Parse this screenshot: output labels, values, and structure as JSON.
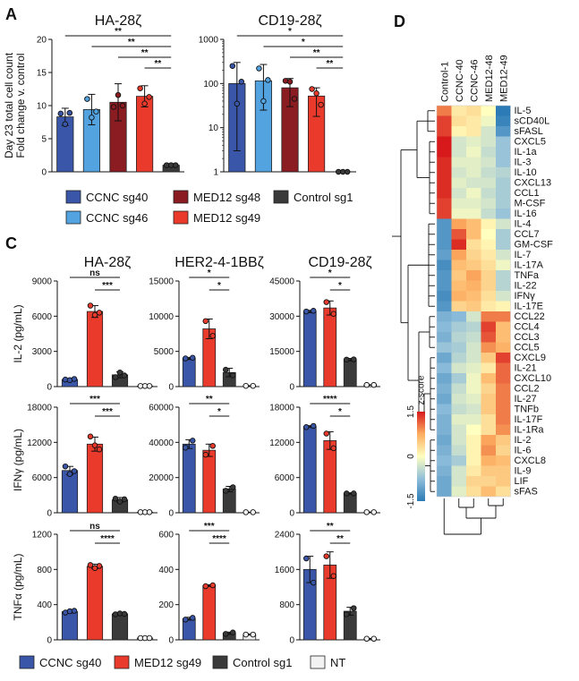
{
  "panel_labels": {
    "a": "A",
    "c": "C",
    "d": "D"
  },
  "colors": {
    "CCNC sg40": "#3a56a8",
    "CCNC sg46": "#52a3e0",
    "MED12 sg48": "#8a1c22",
    "MED12 sg49": "#ea3a2c",
    "Control sg1": "#3a3a3a",
    "NT": "#f2f2f2"
  },
  "legend_a": {
    "items": [
      "CCNC sg40",
      "MED12 sg48",
      "Control sg1",
      "CCNC sg46",
      "MED12 sg49"
    ]
  },
  "legend_c": {
    "items": [
      "CCNC sg40",
      "MED12 sg49",
      "Control sg1",
      "NT"
    ]
  },
  "chart_data": [
    {
      "id": "A-HA",
      "type": "bar",
      "panel": "A",
      "title": "HA-28ζ",
      "ylabel": "Day 23 total cell count\nFold change v. control",
      "scale": "linear",
      "ylim": [
        0,
        20
      ],
      "yticks": [
        0,
        5,
        10,
        15,
        20
      ],
      "categories": [
        "CCNC sg40",
        "CCNC sg46",
        "MED12 sg48",
        "MED12 sg49",
        "Control sg1"
      ],
      "values": [
        8.3,
        9.4,
        10.5,
        11.4,
        1.0
      ],
      "errors": [
        1.3,
        2.3,
        2.8,
        1.6,
        0.1
      ],
      "points": [
        [
          8.8,
          7.2,
          8.9
        ],
        [
          11,
          8.2,
          9.1
        ],
        [
          9.8,
          11.6,
          10
        ],
        [
          12.6,
          10.3,
          11.3
        ],
        [
          1,
          1,
          1
        ]
      ],
      "significance": [
        {
          "from": 0,
          "to": 4,
          "label": "**"
        },
        {
          "from": 1,
          "to": 4,
          "label": "**"
        },
        {
          "from": 2,
          "to": 4,
          "label": "**"
        },
        {
          "from": 3,
          "to": 4,
          "label": "**"
        }
      ]
    },
    {
      "id": "A-CD19",
      "type": "bar",
      "panel": "A",
      "title": "CD19-28ζ",
      "ylabel": "",
      "scale": "log",
      "ylim": [
        1,
        1000
      ],
      "yticks": [
        1,
        10,
        100,
        1000
      ],
      "categories": [
        "CCNC sg40",
        "CCNC sg46",
        "MED12 sg48",
        "MED12 sg49",
        "Control sg1"
      ],
      "values": [
        100,
        115,
        80,
        52,
        1.0
      ],
      "errors_low": [
        97,
        90,
        50,
        34,
        0
      ],
      "errors_high": [
        300,
        270,
        130,
        80,
        1
      ],
      "points": [
        [
          250,
          35,
          110
        ],
        [
          220,
          40,
          120
        ],
        [
          115,
          110,
          45
        ],
        [
          75,
          60,
          33
        ],
        [
          1,
          1,
          1
        ]
      ],
      "significance": [
        {
          "from": 0,
          "to": 4,
          "label": "*"
        },
        {
          "from": 1,
          "to": 4,
          "label": "*"
        },
        {
          "from": 2,
          "to": 4,
          "label": "**"
        },
        {
          "from": 3,
          "to": 4,
          "label": "**"
        }
      ]
    },
    {
      "id": "C-IL2-HA",
      "type": "bar",
      "panel": "C",
      "title": "HA-28ζ",
      "ylabel": "IL-2 (pg/mL)",
      "scale": "linear",
      "ylim": [
        0,
        9000
      ],
      "yticks": [
        0,
        3000,
        6000,
        9000
      ],
      "categories": [
        "CCNC sg40",
        "MED12 sg49",
        "Control sg1",
        "NT"
      ],
      "values": [
        600,
        6400,
        1000,
        50
      ],
      "errors": [
        80,
        500,
        250,
        20
      ],
      "points": [
        [
          600,
          550,
          650
        ],
        [
          6900,
          6100,
          6300
        ],
        [
          800,
          1200,
          950
        ],
        [
          50,
          50,
          50
        ]
      ],
      "significance": [
        {
          "from": 0,
          "to": 2,
          "label": "ns"
        },
        {
          "from": 1,
          "to": 2,
          "label": "***"
        }
      ]
    },
    {
      "id": "C-IL2-HER2",
      "type": "bar",
      "panel": "C",
      "title": "HER2-4-1BBζ",
      "ylabel": "",
      "scale": "linear",
      "ylim": [
        0,
        15000
      ],
      "yticks": [
        0,
        5000,
        10000,
        15000
      ],
      "categories": [
        "CCNC sg40",
        "MED12 sg49",
        "Control sg1",
        "NT"
      ],
      "values": [
        4000,
        8200,
        2000,
        100
      ],
      "errors": [
        150,
        1400,
        600,
        30
      ],
      "points": [
        [
          4000,
          4100
        ],
        [
          9300,
          7200
        ],
        [
          2400,
          1600
        ],
        [
          100,
          100
        ]
      ],
      "significance": [
        {
          "from": 0,
          "to": 2,
          "label": "*"
        },
        {
          "from": 1,
          "to": 2,
          "label": "*"
        }
      ]
    },
    {
      "id": "C-IL2-CD19",
      "type": "bar",
      "panel": "C",
      "title": "CD19-28ζ",
      "ylabel": "",
      "scale": "linear",
      "ylim": [
        0,
        45000
      ],
      "yticks": [
        0,
        15000,
        30000,
        45000
      ],
      "categories": [
        "CCNC sg40",
        "MED12 sg49",
        "Control sg1",
        "NT"
      ],
      "values": [
        32000,
        33500,
        11500,
        700
      ],
      "errors": [
        500,
        3000,
        500,
        100
      ],
      "points": [
        [
          32000,
          32300
        ],
        [
          36000,
          31000
        ],
        [
          11500,
          11600
        ],
        [
          700,
          700
        ]
      ],
      "significance": [
        {
          "from": 0,
          "to": 2,
          "label": "*"
        },
        {
          "from": 1,
          "to": 2,
          "label": "*"
        }
      ]
    },
    {
      "id": "C-IFNg-HA",
      "type": "bar",
      "panel": "C",
      "title": "",
      "ylabel": "IFNγ (pg/mL)",
      "scale": "linear",
      "ylim": [
        0,
        18000
      ],
      "yticks": [
        0,
        6000,
        12000,
        18000
      ],
      "categories": [
        "CCNC sg40",
        "MED12 sg49",
        "Control sg1",
        "NT"
      ],
      "values": [
        7200,
        11700,
        2200,
        100
      ],
      "errors": [
        700,
        1200,
        400,
        30
      ],
      "points": [
        [
          7900,
          6600,
          7100
        ],
        [
          13000,
          11500,
          10800
        ],
        [
          2400,
          1900,
          2300
        ],
        [
          100,
          100,
          100
        ]
      ],
      "significance": [
        {
          "from": 0,
          "to": 2,
          "label": "***"
        },
        {
          "from": 1,
          "to": 2,
          "label": "***"
        }
      ]
    },
    {
      "id": "C-IFNg-HER2",
      "type": "bar",
      "panel": "C",
      "title": "",
      "ylabel": "",
      "scale": "linear",
      "ylim": [
        0,
        60000
      ],
      "yticks": [
        0,
        20000,
        40000,
        60000
      ],
      "categories": [
        "CCNC sg40",
        "MED12 sg49",
        "Control sg1",
        "NT"
      ],
      "values": [
        39000,
        35500,
        13500,
        300
      ],
      "errors": [
        2500,
        3500,
        1500,
        50
      ],
      "points": [
        [
          37000,
          41000
        ],
        [
          33000,
          38000
        ],
        [
          12500,
          14500
        ],
        [
          300,
          300
        ]
      ],
      "significance": [
        {
          "from": 0,
          "to": 2,
          "label": "**"
        },
        {
          "from": 1,
          "to": 2,
          "label": "*"
        }
      ]
    },
    {
      "id": "C-IFNg-CD19",
      "type": "bar",
      "panel": "C",
      "title": "",
      "ylabel": "",
      "scale": "linear",
      "ylim": [
        0,
        18000
      ],
      "yticks": [
        0,
        6000,
        12000,
        18000
      ],
      "categories": [
        "CCNC sg40",
        "MED12 sg49",
        "Control sg1",
        "NT"
      ],
      "values": [
        14700,
        12300,
        3300,
        100
      ],
      "errors": [
        150,
        1500,
        100,
        30
      ],
      "points": [
        [
          14600,
          14800
        ],
        [
          13500,
          11000
        ],
        [
          3300,
          3300
        ],
        [
          100,
          100
        ]
      ],
      "significance": [
        {
          "from": 0,
          "to": 2,
          "label": "****"
        },
        {
          "from": 1,
          "to": 2,
          "label": "*"
        }
      ]
    },
    {
      "id": "C-TNFa-HA",
      "type": "bar",
      "panel": "C",
      "title": "",
      "ylabel": "TNFα (pg/mL)",
      "scale": "linear",
      "ylim": [
        0,
        1200
      ],
      "yticks": [
        0,
        400,
        800,
        1200
      ],
      "categories": [
        "CCNC sg40",
        "MED12 sg49",
        "Control sg1",
        "NT"
      ],
      "values": [
        320,
        835,
        295,
        20
      ],
      "errors": [
        15,
        25,
        10,
        5
      ],
      "points": [
        [
          310,
          325,
          330
        ],
        [
          850,
          815,
          840
        ],
        [
          290,
          300,
          295
        ],
        [
          20,
          20,
          20
        ]
      ],
      "significance": [
        {
          "from": 0,
          "to": 2,
          "label": "ns"
        },
        {
          "from": 1,
          "to": 2,
          "label": "****"
        }
      ]
    },
    {
      "id": "C-TNFa-HER2",
      "type": "bar",
      "panel": "C",
      "title": "",
      "ylabel": "",
      "scale": "linear",
      "ylim": [
        0,
        600
      ],
      "yticks": [
        0,
        200,
        400,
        600
      ],
      "categories": [
        "CCNC sg40",
        "MED12 sg49",
        "Control sg1",
        "NT"
      ],
      "values": [
        120,
        308,
        38,
        30
      ],
      "errors": [
        8,
        5,
        6,
        3
      ],
      "points": [
        [
          115,
          125
        ],
        [
          305,
          310
        ],
        [
          34,
          42
        ],
        [
          30,
          30
        ]
      ],
      "significance": [
        {
          "from": 0,
          "to": 2,
          "label": "***"
        },
        {
          "from": 1,
          "to": 2,
          "label": "****"
        }
      ]
    },
    {
      "id": "C-TNFa-CD19",
      "type": "bar",
      "panel": "C",
      "title": "",
      "ylabel": "",
      "scale": "linear",
      "ylim": [
        0,
        2400
      ],
      "yticks": [
        0,
        800,
        1600,
        2400
      ],
      "categories": [
        "CCNC sg40",
        "MED12 sg49",
        "Control sg1",
        "NT"
      ],
      "values": [
        1600,
        1700,
        650,
        25
      ],
      "errors": [
        300,
        300,
        90,
        8
      ],
      "points": [
        [
          1850,
          1300
        ],
        [
          1900,
          1450
        ],
        [
          580,
          720
        ],
        [
          25,
          25
        ]
      ],
      "significance": [
        {
          "from": 0,
          "to": 2,
          "label": "**"
        },
        {
          "from": 1,
          "to": 2,
          "label": "**"
        }
      ]
    },
    {
      "id": "D",
      "type": "heatmap",
      "panel": "D",
      "columns": [
        "Control-1",
        "CCNC-40",
        "CCNC-46",
        "MED12-48",
        "MED12-49"
      ],
      "rows": [
        "IL-5",
        "sCD40L",
        "sFASL",
        "CXCL5",
        "IL-1a",
        "IL-3",
        "IL-10",
        "CXCL13",
        "CCL1",
        "M-CSF",
        "IL-16",
        "IL-4",
        "CCL7",
        "GM-CSF",
        "IL-7",
        "IL-17A",
        "TNFa",
        "IL-22",
        "IFNγ",
        "IL-17E",
        "CCL22",
        "CCL4",
        "CCL3",
        "CCL5",
        "CXCL9",
        "IL-21",
        "CXCL10",
        "CCL2",
        "IL-27",
        "TNFb",
        "IL-17F",
        "IL-1Ra",
        "IL-2",
        "IL-6",
        "CXCL8",
        "IL-9",
        "LIF",
        "sFAS"
      ],
      "values": [
        [
          1.0,
          0.2,
          0.3,
          0.0,
          -1.6
        ],
        [
          1.3,
          0.3,
          0.2,
          -0.1,
          -1.4
        ],
        [
          1.3,
          0.1,
          0.2,
          -0.3,
          -1.2
        ],
        [
          1.5,
          -0.3,
          -0.2,
          -0.3,
          -0.7
        ],
        [
          1.5,
          -0.3,
          -0.1,
          -0.4,
          -0.7
        ],
        [
          1.4,
          -0.2,
          -0.2,
          -0.3,
          -0.7
        ],
        [
          1.4,
          -0.3,
          -0.2,
          -0.4,
          -0.5
        ],
        [
          1.4,
          -0.2,
          -0.3,
          -0.3,
          -0.6
        ],
        [
          1.4,
          -0.3,
          -0.1,
          -0.4,
          -0.6
        ],
        [
          1.3,
          -0.2,
          -0.2,
          -0.3,
          -0.6
        ],
        [
          1.3,
          -0.1,
          -0.1,
          -0.4,
          -0.7
        ],
        [
          -1.2,
          0.8,
          0.6,
          0.1,
          -0.3
        ],
        [
          -1.2,
          1.2,
          0.6,
          0.0,
          -0.6
        ],
        [
          -1.2,
          1.4,
          0.3,
          0.1,
          -0.6
        ],
        [
          -1.1,
          0.8,
          0.4,
          0.2,
          -0.3
        ],
        [
          -1.3,
          0.6,
          0.5,
          0.3,
          -0.1
        ],
        [
          -1.2,
          0.5,
          0.8,
          0.4,
          -0.5
        ],
        [
          -1.2,
          0.6,
          0.7,
          0.4,
          -0.5
        ],
        [
          -1.3,
          0.7,
          0.6,
          0.3,
          -0.3
        ],
        [
          -1.2,
          0.4,
          0.5,
          0.2,
          0.1
        ],
        [
          -0.9,
          -0.8,
          -0.3,
          1.0,
          1.0
        ],
        [
          -0.8,
          -0.6,
          -0.5,
          1.3,
          0.6
        ],
        [
          -0.9,
          -0.5,
          -0.4,
          1.2,
          0.6
        ],
        [
          -0.7,
          -0.6,
          -0.3,
          0.9,
          0.7
        ],
        [
          -1.0,
          -0.5,
          -0.3,
          0.5,
          1.3
        ],
        [
          -0.8,
          -0.3,
          -0.2,
          0.2,
          1.1
        ],
        [
          -1.0,
          -0.6,
          -0.1,
          0.6,
          1.1
        ],
        [
          -0.9,
          -0.4,
          -0.1,
          0.4,
          1.0
        ],
        [
          -1.0,
          -0.3,
          -0.2,
          0.5,
          1.0
        ],
        [
          -0.8,
          -0.4,
          -0.3,
          0.5,
          1.0
        ],
        [
          -0.9,
          -0.2,
          -0.2,
          0.3,
          1.0
        ],
        [
          -0.9,
          -0.3,
          0.0,
          0.3,
          0.9
        ],
        [
          -1.0,
          -0.3,
          0.1,
          0.8,
          0.5
        ],
        [
          -0.9,
          -0.4,
          0.1,
          0.9,
          0.4
        ],
        [
          -0.8,
          -0.6,
          0.1,
          0.7,
          0.6
        ],
        [
          -0.9,
          -0.3,
          0.2,
          0.5,
          0.5
        ],
        [
          -1.0,
          -0.3,
          0.4,
          0.4,
          0.5
        ],
        [
          -1.0,
          -0.2,
          0.3,
          0.6,
          0.3
        ]
      ],
      "colorbar": {
        "label": "z-score",
        "ticks": [
          -1.5,
          0,
          1.5
        ]
      }
    }
  ]
}
